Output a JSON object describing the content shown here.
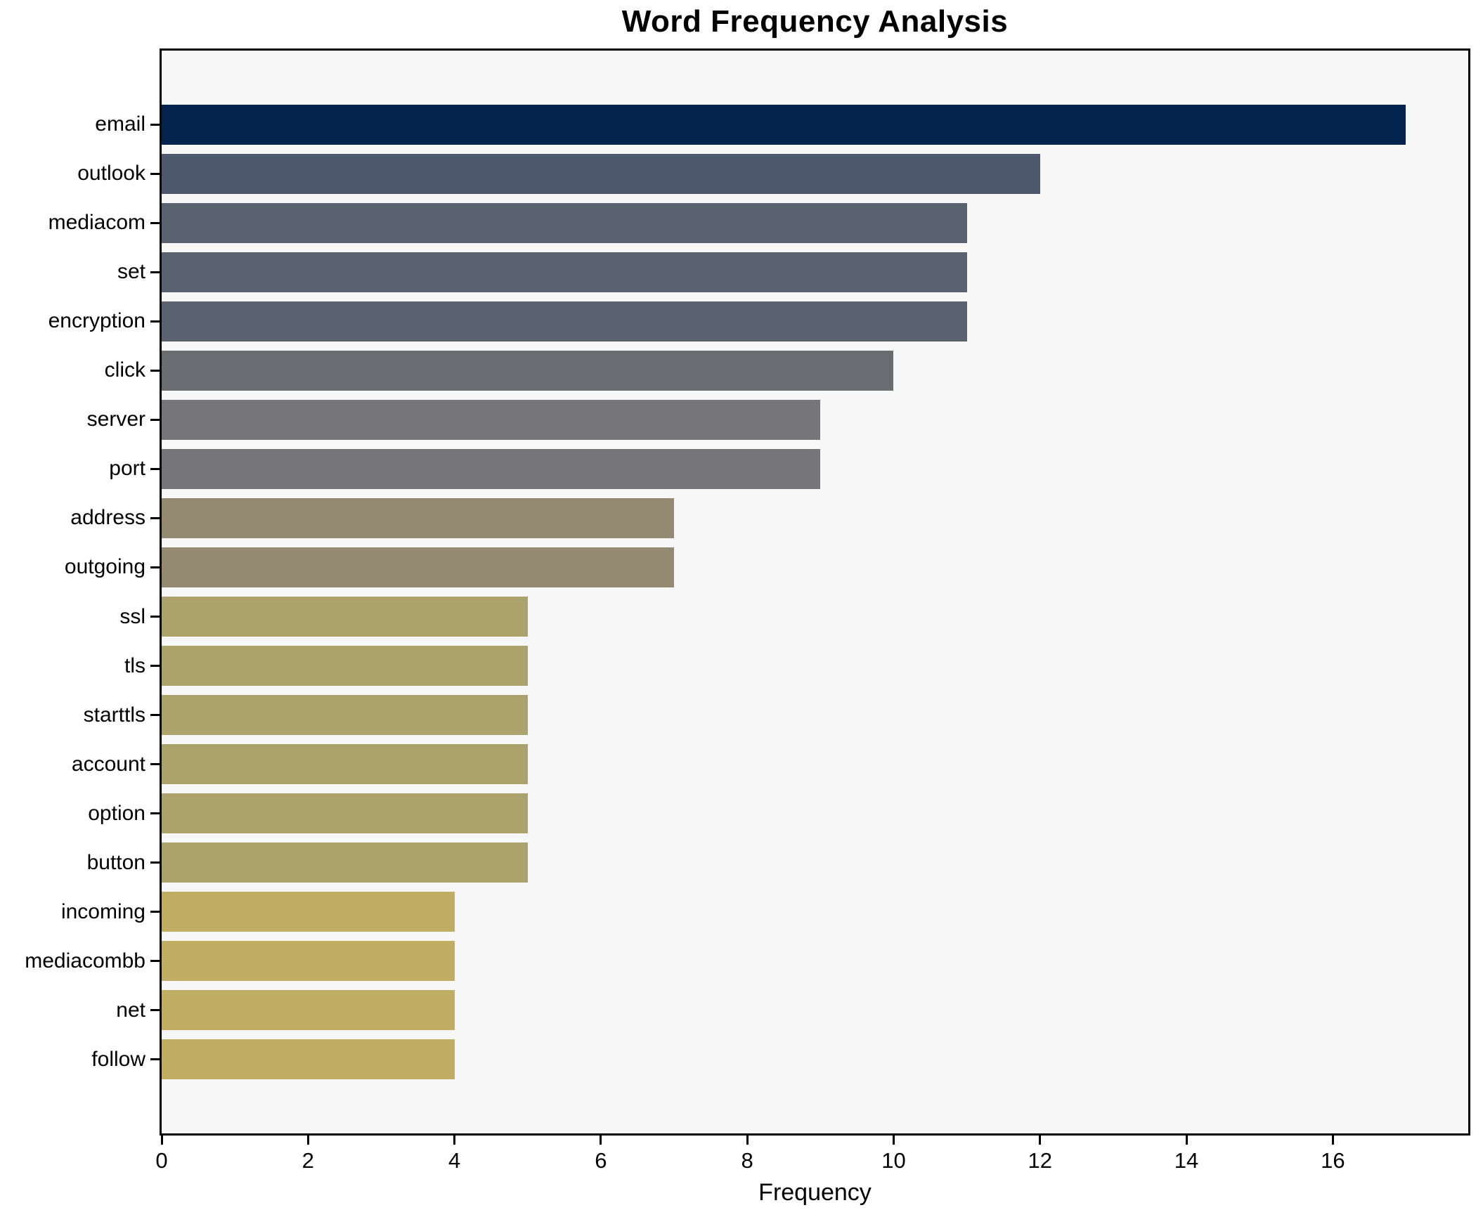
{
  "colors": {
    "figure_bg": "#ffffff",
    "plot_bg": "#f7f7f7",
    "axis": "#000000",
    "text": "#000000"
  },
  "chart_data": {
    "type": "bar",
    "orientation": "horizontal",
    "title": "Word Frequency Analysis",
    "xlabel": "Frequency",
    "ylabel": "",
    "xlim": [
      0,
      17.85
    ],
    "xticks": [
      0,
      2,
      4,
      6,
      8,
      10,
      12,
      14,
      16
    ],
    "grid": false,
    "legend": false,
    "categories": [
      "email",
      "outlook",
      "mediacom",
      "set",
      "encryption",
      "click",
      "server",
      "port",
      "address",
      "outgoing",
      "ssl",
      "tls",
      "starttls",
      "account",
      "option",
      "button",
      "incoming",
      "mediacombb",
      "net",
      "follow"
    ],
    "values": [
      17,
      12,
      11,
      11,
      11,
      10,
      9,
      9,
      7,
      7,
      5,
      5,
      5,
      5,
      5,
      5,
      4,
      4,
      4,
      4
    ],
    "bar_colors": [
      "#02234e",
      "#4e586f",
      "#5a626f",
      "#5a626f",
      "#5a626f",
      "#696c71",
      "#767678",
      "#767678",
      "#948a72",
      "#948a72",
      "#aca26c",
      "#aca26c",
      "#aca26c",
      "#aca26c",
      "#aca26c",
      "#aca26c",
      "#bfae63",
      "#bfae63",
      "#bfae63",
      "#bfae63"
    ]
  }
}
